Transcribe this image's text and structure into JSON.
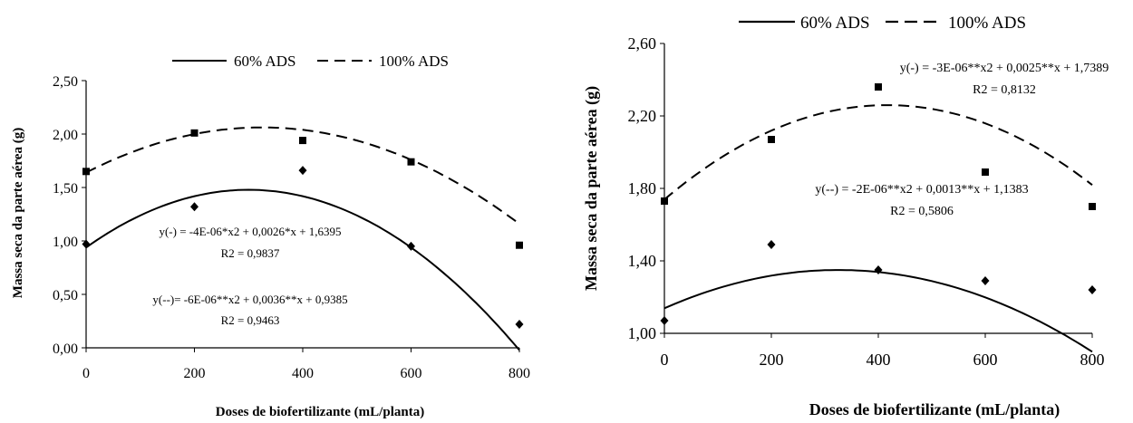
{
  "chart_data": [
    {
      "type": "scatter",
      "xlabel": "Doses de biofertilizante (mL/planta)",
      "ylabel": "Massa seca da parte aérea (g)",
      "xlim": [
        0,
        800
      ],
      "ylim": [
        0,
        2.5
      ],
      "x_ticks": [
        0,
        200,
        400,
        600,
        800
      ],
      "x_tick_labels": [
        "0",
        "200",
        "400",
        "600",
        "800"
      ],
      "y_ticks": [
        0,
        0.5,
        1.0,
        1.5,
        2.0,
        2.5
      ],
      "y_tick_labels": [
        "0,00",
        "0,50",
        "1,00",
        "1,50",
        "2,00",
        "2,50"
      ],
      "grid": false,
      "legend_position": "top-center",
      "series": [
        {
          "name": "60% ADS",
          "line_style": "solid",
          "marker": "diamond",
          "x": [
            0,
            200,
            400,
            600,
            800
          ],
          "y": [
            0.97,
            1.32,
            1.66,
            0.95,
            0.22
          ],
          "fit": {
            "a": -6e-06,
            "b": 0.0036,
            "c": 0.9385
          },
          "equation": "y(--)= -6E-06**x2 + 0,0036**x + 0,9385",
          "r2": "R2 = 0,9463"
        },
        {
          "name": "100% ADS",
          "line_style": "dashed",
          "marker": "square",
          "x": [
            0,
            200,
            400,
            600,
            800
          ],
          "y": [
            1.65,
            2.01,
            1.94,
            1.74,
            0.96
          ],
          "fit": {
            "a": -4e-06,
            "b": 0.0026,
            "c": 1.6395
          },
          "equation": "y(-) = -4E-06*x2 + 0,0026*x + 1,6395",
          "r2": "R2 = 0,9837"
        }
      ]
    },
    {
      "type": "scatter",
      "xlabel": "Doses de biofertilizante (mL/planta)",
      "ylabel": "Massa seca da parte aérea (g)",
      "xlim": [
        0,
        800
      ],
      "ylim": [
        1.0,
        2.6
      ],
      "x_ticks": [
        0,
        200,
        400,
        600,
        800
      ],
      "x_tick_labels": [
        "0",
        "200",
        "400",
        "600",
        "800"
      ],
      "y_ticks": [
        1.0,
        1.4,
        1.8,
        2.2,
        2.6
      ],
      "y_tick_labels": [
        "1,00",
        "1,40",
        "1,80",
        "2,20",
        "2,60"
      ],
      "grid": false,
      "legend_position": "top-center",
      "series": [
        {
          "name": "60% ADS",
          "line_style": "solid",
          "marker": "diamond",
          "x": [
            0,
            200,
            400,
            600,
            800
          ],
          "y": [
            1.07,
            1.49,
            1.35,
            1.29,
            1.24
          ],
          "fit": {
            "a": -2e-06,
            "b": 0.0013,
            "c": 1.1383
          },
          "equation": "y(--) = -2E-06**x2 + 0,0013**x + 1,1383",
          "r2": "R2 = 0,5806"
        },
        {
          "name": "100% ADS",
          "line_style": "dashed",
          "marker": "square",
          "x": [
            0,
            200,
            400,
            600,
            800
          ],
          "y": [
            1.73,
            2.07,
            2.36,
            1.89,
            1.7
          ],
          "fit": {
            "a": -3e-06,
            "b": 0.0025,
            "c": 1.7389
          },
          "equation": "y(-) = -3E-06**x2 + 0,0025**x + 1,7389",
          "r2": "R2 = 0,8132"
        }
      ]
    }
  ]
}
